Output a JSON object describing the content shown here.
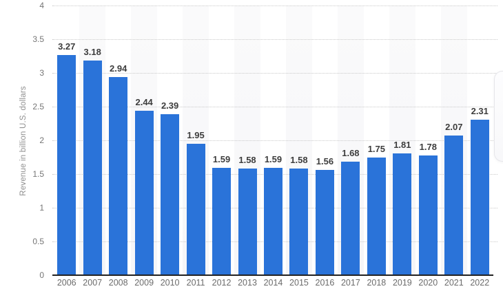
{
  "chart_data": {
    "type": "bar",
    "title": "",
    "categories": [
      "2006",
      "2007",
      "2008",
      "2009",
      "2010",
      "2011",
      "2012",
      "2013",
      "2014",
      "2015",
      "2016",
      "2017",
      "2018",
      "2019",
      "2020",
      "2021",
      "2022"
    ],
    "values": [
      3.27,
      3.18,
      2.94,
      2.44,
      2.39,
      1.95,
      1.59,
      1.58,
      1.59,
      1.58,
      1.56,
      1.68,
      1.75,
      1.81,
      1.78,
      2.07,
      2.31
    ],
    "value_labels": [
      "3.27",
      "3.18",
      "2.94",
      "2.44",
      "2.39",
      "1.95",
      "1.59",
      "1.58",
      "1.59",
      "1.58",
      "1.56",
      "1.68",
      "1.75",
      "1.81",
      "1.78",
      "2.07",
      "2.31"
    ],
    "xlabel": "",
    "ylabel": "Revenue in billion U.S. dollars",
    "ylim": [
      0,
      4
    ],
    "yticks": [
      "0",
      "0.5",
      "1",
      "1.5",
      "2",
      "2.5",
      "3",
      "3.5",
      "4"
    ],
    "grid": "horizontal-dotted",
    "legend_position": "none",
    "colors": {
      "bar": "#2a73d9",
      "value_label": "#3d3d3d",
      "axis_tick_label": "#6b6b6b",
      "y_axis_title": "#8f8f8f",
      "gridline": "#c9c9c9",
      "axis_line": "#212121",
      "column_stripe": "#f7f7f9",
      "background": "#ffffff"
    }
  }
}
